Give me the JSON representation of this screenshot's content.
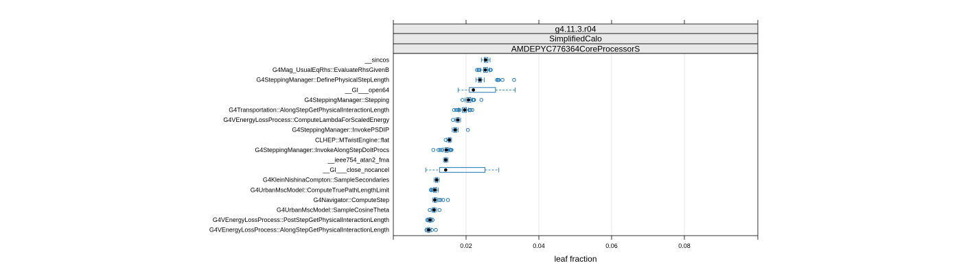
{
  "chart_data": {
    "type": "boxplot",
    "strips": [
      "g4.11.3.r04",
      "SimplifiedCalo",
      "AMDEPYC776364CoreProcessorS"
    ],
    "xlabel": "leaf fraction",
    "xlim": [
      0.0,
      0.1
    ],
    "xticks": [
      0.02,
      0.04,
      0.06,
      0.08
    ],
    "xtick_labels": [
      "0.02",
      "0.04",
      "0.06",
      "0.08"
    ],
    "grid": true,
    "colors": {
      "box": "#1f77b4",
      "median": "#000000",
      "grid": "#e6e6e6",
      "strip": "#e8e8e8"
    },
    "categories": [
      "__sincos",
      "G4Mag_UsualEqRhs::EvaluateRhsGivenB",
      "G4SteppingManager::DefinePhysicalStepLength",
      "__GI___open64",
      "G4SteppingManager::Stepping",
      "G4Transportation::AlongStepGetPhysicalInteractionLength",
      "G4VEnergyLossProcess::ComputeLambdaForScaledEnergy",
      "G4SteppingManager::InvokePSDIP",
      "CLHEP::MTwistEngine::flat",
      "G4SteppingManager::InvokeAlongStepDoItProcs",
      "__ieee754_atan2_fma",
      "__GI___close_nocancel",
      "G4KleinNishinaCompton::SampleSecondaries",
      "G4UrbanMscModel::ComputeTruePathLengthLimit",
      "G4Navigator::ComputeStep",
      "G4UrbanMscModel::SampleCosineTheta",
      "G4VEnergyLossProcess::PostStepGetPhysicalInteractionLength",
      "G4VEnergyLossProcess::AlongStepGetPhysicalInteractionLength"
    ],
    "boxes": [
      {
        "min": 0.0242,
        "q1": 0.025,
        "median": 0.0254,
        "q3": 0.026,
        "max": 0.0266,
        "outliers": []
      },
      {
        "min": 0.024,
        "q1": 0.0248,
        "median": 0.0253,
        "q3": 0.0259,
        "max": 0.0265,
        "outliers": [
          0.023,
          0.0234,
          0.0236,
          0.0266,
          0.0268
        ]
      },
      {
        "min": 0.0227,
        "q1": 0.0234,
        "median": 0.0238,
        "q3": 0.0242,
        "max": 0.025,
        "outliers": [
          0.0285,
          0.0288,
          0.029,
          0.03,
          0.0332
        ]
      },
      {
        "min": 0.0178,
        "q1": 0.0209,
        "median": 0.022,
        "q3": 0.0281,
        "max": 0.0335,
        "outliers": []
      },
      {
        "min": 0.0197,
        "q1": 0.0202,
        "median": 0.0207,
        "q3": 0.0213,
        "max": 0.0217,
        "outliers": [
          0.019,
          0.0219,
          0.0221,
          0.0222,
          0.0242
        ]
      },
      {
        "min": 0.018,
        "q1": 0.019,
        "median": 0.0196,
        "q3": 0.0201,
        "max": 0.0207,
        "outliers": [
          0.0167,
          0.0173,
          0.0178,
          0.0182,
          0.0209,
          0.0212,
          0.0217
        ]
      },
      {
        "min": 0.017,
        "q1": 0.0174,
        "median": 0.0177,
        "q3": 0.0181,
        "max": 0.0185,
        "outliers": [
          0.0164
        ]
      },
      {
        "min": 0.0162,
        "q1": 0.0166,
        "median": 0.017,
        "q3": 0.0174,
        "max": 0.0178,
        "outliers": [
          0.0205
        ]
      },
      {
        "min": 0.0147,
        "q1": 0.0151,
        "median": 0.0154,
        "q3": 0.0157,
        "max": 0.016,
        "outliers": [
          0.0144
        ]
      },
      {
        "min": 0.0137,
        "q1": 0.0142,
        "median": 0.0146,
        "q3": 0.0151,
        "max": 0.0156,
        "outliers": [
          0.011,
          0.0124,
          0.0129,
          0.0134,
          0.0156,
          0.0158,
          0.016
        ]
      },
      {
        "min": 0.0138,
        "q1": 0.0141,
        "median": 0.0144,
        "q3": 0.0147,
        "max": 0.015,
        "outliers": []
      },
      {
        "min": 0.0089,
        "q1": 0.0127,
        "median": 0.0144,
        "q3": 0.0252,
        "max": 0.029,
        "outliers": []
      },
      {
        "min": 0.0112,
        "q1": 0.0116,
        "median": 0.0119,
        "q3": 0.0122,
        "max": 0.0126,
        "outliers": []
      },
      {
        "min": 0.0104,
        "q1": 0.011,
        "median": 0.0114,
        "q3": 0.0119,
        "max": 0.0124,
        "outliers": [
          0.0103,
          0.0106
        ]
      },
      {
        "min": 0.0108,
        "q1": 0.0112,
        "median": 0.0114,
        "q3": 0.0118,
        "max": 0.0122,
        "outliers": [
          0.0126,
          0.013,
          0.0137,
          0.015
        ]
      },
      {
        "min": 0.0106,
        "q1": 0.0109,
        "median": 0.0112,
        "q3": 0.0115,
        "max": 0.0119,
        "outliers": [
          0.01,
          0.0127
        ]
      },
      {
        "min": 0.0094,
        "q1": 0.0098,
        "median": 0.0101,
        "q3": 0.0104,
        "max": 0.0108,
        "outliers": [
          0.0093,
          0.0096,
          0.0108
        ]
      },
      {
        "min": 0.009,
        "q1": 0.0094,
        "median": 0.0097,
        "q3": 0.01,
        "max": 0.0104,
        "outliers": [
          0.0091,
          0.0106,
          0.0117
        ]
      }
    ]
  }
}
